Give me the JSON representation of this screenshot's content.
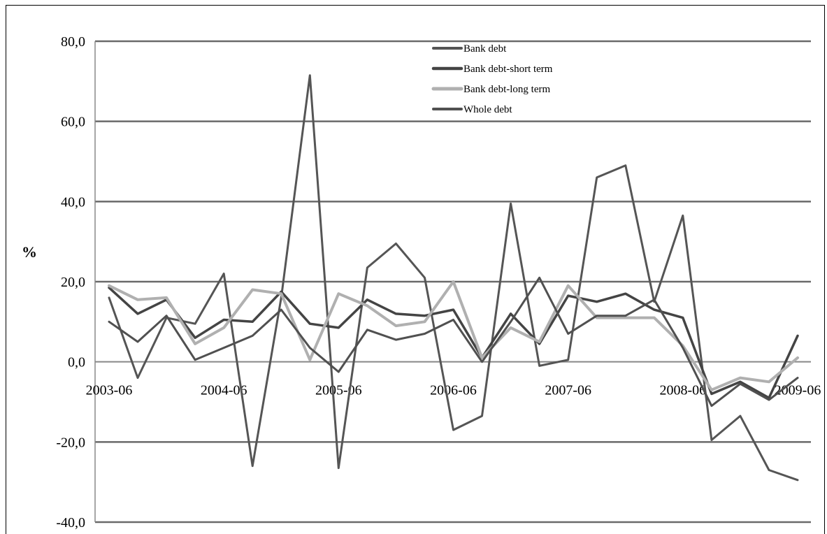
{
  "chart_data": {
    "type": "line",
    "title": "",
    "xlabel": "",
    "ylabel": "%",
    "ylim": [
      -40,
      80
    ],
    "y_ticks": [
      "80,0",
      "60,0",
      "40,0",
      "20,0",
      "0,0",
      "-20,0",
      "-40,0"
    ],
    "y_tick_values": [
      80,
      60,
      40,
      20,
      0,
      -20,
      -40
    ],
    "x_tick_labels": [
      "2003-06",
      "2004-06",
      "2005-06",
      "2006-06",
      "2007-06",
      "2008-06",
      "2009-06"
    ],
    "x_tick_index": [
      0,
      4,
      8,
      12,
      16,
      20,
      24
    ],
    "x": [
      "2003-06",
      "2003-09",
      "2003-12",
      "2004-03",
      "2004-06",
      "2004-09",
      "2004-12",
      "2005-03",
      "2005-06",
      "2005-09",
      "2005-12",
      "2006-03",
      "2006-06",
      "2006-09",
      "2006-12",
      "2007-03",
      "2007-06",
      "2007-09",
      "2007-12",
      "2008-03",
      "2008-06",
      "2008-09",
      "2008-12",
      "2009-03",
      "2009-06"
    ],
    "grid": true,
    "legend_position": "top-center",
    "series": [
      {
        "name": "Bank debt",
        "color": "#555555",
        "width": 3,
        "values": [
          16,
          -4,
          11,
          9.5,
          22,
          -26,
          16,
          71.5,
          -26.5,
          23.5,
          29.5,
          21,
          -17,
          -13.5,
          39.5,
          -1,
          0.5,
          46,
          49,
          15,
          36.5,
          -19.5,
          -13.5,
          -27,
          -29.5
        ]
      },
      {
        "name": "Bank debt-short term",
        "color": "#444444",
        "width": 3.5,
        "values": [
          18.5,
          12,
          15.5,
          6,
          10.5,
          10,
          17.5,
          9.5,
          8.5,
          15.5,
          12,
          11.5,
          13,
          1,
          12,
          4.5,
          16.5,
          15,
          17,
          13,
          11,
          -8,
          -5,
          -9,
          6.5
        ]
      },
      {
        "name": "Bank debt-long term",
        "color": "#b0b0b0",
        "width": 4,
        "values": [
          19,
          15.5,
          16,
          4.5,
          8.5,
          18,
          17,
          0.5,
          17,
          14,
          9,
          10,
          20,
          1,
          8.5,
          5,
          19,
          11,
          11,
          11,
          4,
          -7,
          -4,
          -5,
          1
        ]
      },
      {
        "name": "Whole debt",
        "color": "#505050",
        "width": 3,
        "values": [
          10,
          5,
          11.5,
          0.5,
          3.5,
          6.5,
          13,
          3.5,
          -2.5,
          8,
          5.5,
          7,
          10.5,
          0,
          10,
          21,
          7,
          11.5,
          11.5,
          15.5,
          3.5,
          -11,
          -5.5,
          -9.5,
          -4
        ]
      }
    ]
  }
}
